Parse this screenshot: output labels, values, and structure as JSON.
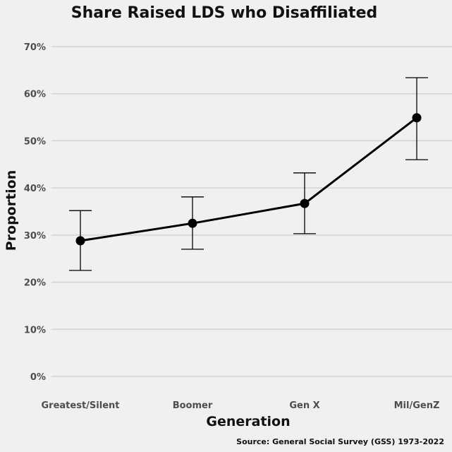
{
  "chart_data": {
    "type": "line",
    "title": "Share Raised LDS who Disaffiliated",
    "xlabel": "Generation",
    "ylabel": "Proportion",
    "caption": "Source: General Social Survey (GSS) 1973-2022",
    "categories": [
      "Greatest/Silent",
      "Boomer",
      "Gen X",
      "Mil/GenZ"
    ],
    "values": [
      28.8,
      32.5,
      36.7,
      54.9
    ],
    "error_low": [
      22.5,
      27.0,
      30.3,
      46.0
    ],
    "error_high": [
      35.2,
      38.1,
      43.2,
      63.4
    ],
    "ylim": [
      0,
      70
    ],
    "yticks": [
      0,
      10,
      20,
      30,
      40,
      50,
      60,
      70
    ],
    "ytick_labels": [
      "0%",
      "10%",
      "20%",
      "30%",
      "40%",
      "50%",
      "60%",
      "70%"
    ],
    "grid": "horizontal",
    "colors": {
      "background": "#f0f0f0",
      "grid": "#d2d2d2",
      "line": "#000000",
      "tick_text": "#4d4d4d"
    }
  }
}
